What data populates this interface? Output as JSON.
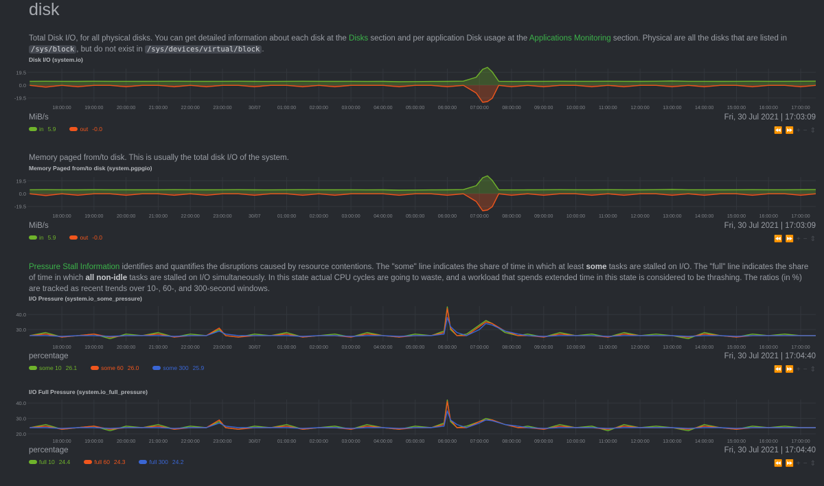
{
  "page_title": "disk",
  "colors": {
    "green": "#6fb32b",
    "orange": "#f0561d",
    "blue": "#3a66d4",
    "link": "#3cb34a",
    "grid": "#33373d",
    "axis_text": "#808489"
  },
  "sections": {
    "disk_io": {
      "text_1": "Total Disk I/O, for all physical disks. You can get detailed information about each disk at the ",
      "link_disks": "Disks",
      "text_2": " section and per application Disk usage at the ",
      "link_apps": "Applications Monitoring",
      "text_3": " section. Physical are all the disks that are listed in ",
      "code_1": "/sys/block",
      "text_4": ", but do not exist in ",
      "code_2": "/sys/devices/virtual/block",
      "text_5": "."
    },
    "pgpgio": {
      "text": "Memory paged from/to disk. This is usually the total disk I/O of the system."
    },
    "psi": {
      "link": "Pressure Stall Information",
      "text_1": " identifies and quantifies the disruptions caused by resource contentions. The \"some\" line indicates the share of time in which at least ",
      "bold_1": "some",
      "text_2": " tasks are stalled on I/O. The \"full\" line indicates the share of time in which ",
      "bold_2": "all non-idle",
      "text_3": " tasks are stalled on I/O simultaneously. In this state actual CPU cycles are going to waste, and a workload that spends extended time in this state is considered to be thrashing. The ratios (in %) are tracked as recent trends over 10-, 60-, and 300-second windows."
    }
  },
  "toolbar": {
    "pan_left": "⏪",
    "pan_right": "⏩",
    "zoom_in": "+",
    "zoom_out": "−",
    "resize": "⇕"
  },
  "chart_data": [
    {
      "type": "area",
      "title": "Disk I/O (system.io)",
      "units": "MiB/s",
      "timestamp": "Fri, 30 Jul 2021 | 17:03:09",
      "xlim": [
        -0.07,
        24.47
      ],
      "ylim": [
        -25,
        25
      ],
      "yticks": [
        19.5,
        0.0,
        -19.5
      ],
      "ytick_labels": [
        "19.5",
        "0.0",
        "-19.5"
      ],
      "xticks": [
        "18:00:00",
        "19:00:00",
        "20:00:00",
        "21:00:00",
        "22:00:00",
        "23:00:00",
        "30/07",
        "01:00:00",
        "02:00:00",
        "03:00:00",
        "04:00:00",
        "05:00:00",
        "06:00:00",
        "07:00:00",
        "08:00:00",
        "09:00:00",
        "10:00:00",
        "11:00:00",
        "12:00:00",
        "13:00:00",
        "14:00:00",
        "15:00:00",
        "16:00:00",
        "17:00:00"
      ],
      "x": [
        0,
        0.5,
        1,
        1.5,
        2,
        2.5,
        3,
        3.5,
        4,
        4.5,
        5,
        5.5,
        6,
        6.5,
        7,
        7.5,
        8,
        8.5,
        9,
        9.5,
        10,
        10.5,
        11,
        11.5,
        12,
        12.5,
        13,
        13.5,
        13.9,
        14.1,
        14.25,
        14.4,
        14.6,
        15,
        15.5,
        16,
        16.5,
        17,
        17.5,
        18,
        18.5,
        19,
        19.5,
        20,
        20.5,
        21,
        21.5,
        22,
        22.5,
        23,
        23.5,
        24,
        24.47
      ],
      "series": [
        {
          "name": "in",
          "color": "#6fb32b",
          "legend_value": "5.9",
          "values": [
            5.8,
            5.9,
            5.8,
            5.7,
            5.9,
            5.8,
            5.8,
            5.7,
            5.8,
            5.9,
            5.8,
            5.7,
            5.8,
            5.9,
            5.7,
            5.6,
            5.8,
            5.9,
            5.8,
            5.7,
            5.8,
            5.6,
            5.7,
            5.2,
            5.4,
            5.6,
            5.7,
            6,
            12,
            24,
            27,
            20,
            5.8,
            5.6,
            5.7,
            5.8,
            5.9,
            5.8,
            5.8,
            5.9,
            5.8,
            5.7,
            5.9,
            6.3,
            5.8,
            5.8,
            5.7,
            5.8,
            5.9,
            5.8,
            5.8,
            5.9,
            6.0
          ]
        },
        {
          "name": "out",
          "color": "#f0561d",
          "legend_value": "-0.0",
          "values": [
            -0.3,
            -3,
            -0.3,
            -2.5,
            -0.3,
            -0.3,
            -2.5,
            -0.3,
            -0.3,
            -2.5,
            -0.3,
            -2.5,
            -0.3,
            -0.3,
            -2.5,
            -0.3,
            -0.3,
            -2.5,
            -0.3,
            -2.5,
            -0.3,
            -0.3,
            -0.3,
            -2.5,
            -0.3,
            -0.3,
            -2.5,
            -0.3,
            -12,
            -26,
            -25,
            -20,
            -0.3,
            -2.5,
            -0.3,
            -2.5,
            -0.3,
            -0.3,
            -2.5,
            -0.3,
            -2.5,
            -0.3,
            -0.3,
            -2.5,
            -0.3,
            -2.5,
            -0.3,
            -0.3,
            -2.5,
            -0.3,
            -0.3,
            -2.5,
            -0.3
          ]
        }
      ]
    },
    {
      "type": "area",
      "title": "Memory Paged from/to disk (system.pgpgio)",
      "units": "MiB/s",
      "timestamp": "Fri, 30 Jul 2021 | 17:03:09",
      "xlim": [
        -0.07,
        24.47
      ],
      "ylim": [
        -25,
        25
      ],
      "yticks": [
        19.5,
        0.0,
        -19.5
      ],
      "ytick_labels": [
        "19.5",
        "0.0",
        "-19.5"
      ],
      "xticks": [
        "18:00:00",
        "19:00:00",
        "20:00:00",
        "21:00:00",
        "22:00:00",
        "23:00:00",
        "30/07",
        "01:00:00",
        "02:00:00",
        "03:00:00",
        "04:00:00",
        "05:00:00",
        "06:00:00",
        "07:00:00",
        "08:00:00",
        "09:00:00",
        "10:00:00",
        "11:00:00",
        "12:00:00",
        "13:00:00",
        "14:00:00",
        "15:00:00",
        "16:00:00",
        "17:00:00"
      ],
      "x": [
        0,
        0.5,
        1,
        1.5,
        2,
        2.5,
        3,
        3.5,
        4,
        4.5,
        5,
        5.5,
        6,
        6.5,
        7,
        7.5,
        8,
        8.5,
        9,
        9.5,
        10,
        10.5,
        11,
        11.5,
        12,
        12.5,
        13,
        13.5,
        13.9,
        14.1,
        14.25,
        14.4,
        14.6,
        15,
        15.5,
        16,
        16.5,
        17,
        17.5,
        18,
        18.5,
        19,
        19.5,
        20,
        20.5,
        21,
        21.5,
        22,
        22.5,
        23,
        23.5,
        24,
        24.47
      ],
      "series": [
        {
          "name": "in",
          "color": "#6fb32b",
          "legend_value": "5.9",
          "values": [
            5.8,
            5.9,
            5.8,
            5.7,
            5.9,
            5.8,
            5.8,
            5.7,
            5.8,
            5.9,
            5.8,
            5.7,
            5.8,
            5.9,
            5.7,
            5.6,
            5.8,
            5.9,
            5.8,
            5.7,
            5.8,
            5.6,
            5.7,
            5.2,
            5.4,
            5.6,
            5.7,
            6,
            12,
            24,
            27,
            20,
            5.8,
            5.6,
            5.7,
            5.8,
            5.9,
            5.8,
            5.8,
            5.9,
            5.8,
            5.7,
            5.9,
            6.3,
            5.8,
            5.8,
            5.7,
            5.8,
            5.9,
            5.8,
            5.8,
            5.9,
            6.0
          ]
        },
        {
          "name": "out",
          "color": "#f0561d",
          "legend_value": "-0.0",
          "values": [
            -0.3,
            -3,
            -0.3,
            -2.5,
            -0.3,
            -0.3,
            -2.5,
            -0.3,
            -0.3,
            -2.5,
            -0.3,
            -2.5,
            -0.3,
            -0.3,
            -2.5,
            -0.3,
            -0.3,
            -2.5,
            -0.3,
            -2.5,
            -0.3,
            -0.3,
            -0.3,
            -2.5,
            -0.3,
            -0.3,
            -2.5,
            -0.3,
            -12,
            -26,
            -25,
            -20,
            -0.3,
            -2.5,
            -0.3,
            -2.5,
            -0.3,
            -0.3,
            -2.5,
            -0.3,
            -2.5,
            -0.3,
            -0.3,
            -2.5,
            -0.3,
            -2.5,
            -0.3,
            -0.3,
            -2.5,
            -0.3,
            -0.3,
            -2.5,
            -0.3
          ]
        }
      ]
    },
    {
      "type": "line",
      "title": "I/O Pressure (system.io_some_pressure)",
      "units": "percentage",
      "timestamp": "Fri, 30 Jul 2021 | 17:04:40",
      "xlim": [
        -0.07,
        24.47
      ],
      "ylim": [
        22.3,
        45.5
      ],
      "yticks": [
        40,
        30
      ],
      "ytick_labels": [
        "40.0",
        "30.0"
      ],
      "xticks": [
        "18:00:00",
        "19:00:00",
        "20:00:00",
        "21:00:00",
        "22:00:00",
        "23:00:00",
        "30/07",
        "01:00:00",
        "02:00:00",
        "03:00:00",
        "04:00:00",
        "05:00:00",
        "06:00:00",
        "07:00:00",
        "08:00:00",
        "09:00:00",
        "10:00:00",
        "11:00:00",
        "12:00:00",
        "13:00:00",
        "14:00:00",
        "15:00:00",
        "16:00:00",
        "17:00:00"
      ],
      "x": [
        0,
        0.5,
        1,
        1.5,
        2,
        2.5,
        3,
        3.5,
        4,
        4.5,
        5,
        5.5,
        5.9,
        6.1,
        6.5,
        7,
        7.5,
        8,
        8.5,
        9,
        9.5,
        10,
        10.5,
        11,
        11.5,
        12,
        12.5,
        12.9,
        13.0,
        13.1,
        13.3,
        13.6,
        14.0,
        14.2,
        14.4,
        14.8,
        15.2,
        15.5,
        16,
        16.5,
        17,
        17.5,
        18,
        18.5,
        19,
        19.5,
        20,
        20.5,
        21,
        21.5,
        22,
        22.5,
        23,
        23.5,
        24,
        24.47
      ],
      "series": [
        {
          "name": "some 10",
          "color": "#6fb32b",
          "legend_value": "26.1",
          "values": [
            26,
            28,
            25,
            26,
            27,
            24,
            27,
            26,
            28,
            25,
            27,
            26,
            30,
            26,
            25,
            27,
            26,
            28,
            25,
            26,
            27,
            25,
            28,
            26,
            25,
            27,
            26,
            29,
            45,
            30,
            26,
            27,
            33,
            36,
            34,
            28,
            26,
            27,
            25,
            28,
            26,
            27,
            25,
            28,
            26,
            27,
            26,
            24,
            28,
            26,
            25,
            27,
            26,
            27,
            26,
            26
          ]
        },
        {
          "name": "some 60",
          "color": "#f0561d",
          "legend_value": "26.0",
          "values": [
            26,
            27,
            25,
            26,
            27,
            25,
            26,
            26,
            27,
            25,
            26,
            26,
            31,
            26,
            25,
            26,
            26,
            27,
            25,
            26,
            26,
            25,
            27,
            26,
            25,
            26,
            26,
            28,
            44,
            31,
            26,
            26,
            32,
            35,
            34,
            29,
            26,
            26,
            25,
            27,
            26,
            26,
            25,
            27,
            26,
            26,
            26,
            25,
            27,
            26,
            25,
            26,
            26,
            26,
            26,
            26
          ]
        },
        {
          "name": "some 300",
          "color": "#3a66d4",
          "legend_value": "25.9",
          "values": [
            26,
            26,
            25.5,
            26,
            26,
            25.5,
            26,
            26,
            26,
            25.5,
            26,
            26,
            29,
            27,
            26,
            26,
            26,
            26,
            25.5,
            26,
            26,
            25.5,
            26,
            26,
            25.5,
            26,
            26,
            27,
            38,
            32,
            28,
            26,
            30,
            34,
            33,
            29,
            27,
            26,
            25.5,
            26,
            26,
            26,
            25.5,
            26,
            26,
            26,
            26,
            25.5,
            26,
            26,
            25.5,
            26,
            26,
            26,
            26,
            26
          ]
        }
      ]
    },
    {
      "type": "line",
      "title": "I/O Full Pressure (system.io_full_pressure)",
      "units": "percentage",
      "timestamp": "Fri, 30 Jul 2021 | 17:04:40",
      "xlim": [
        -0.07,
        24.47
      ],
      "ylim": [
        19.1,
        42.3
      ],
      "yticks": [
        40,
        30,
        20
      ],
      "ytick_labels": [
        "40.0",
        "30.0",
        "20.0"
      ],
      "xticks": [
        "18:00:00",
        "19:00:00",
        "20:00:00",
        "21:00:00",
        "22:00:00",
        "23:00:00",
        "30/07",
        "01:00:00",
        "02:00:00",
        "03:00:00",
        "04:00:00",
        "05:00:00",
        "06:00:00",
        "07:00:00",
        "08:00:00",
        "09:00:00",
        "10:00:00",
        "11:00:00",
        "12:00:00",
        "13:00:00",
        "14:00:00",
        "15:00:00",
        "16:00:00",
        "17:00:00"
      ],
      "x": [
        0,
        0.5,
        1,
        1.5,
        2,
        2.5,
        3,
        3.5,
        4,
        4.5,
        5,
        5.5,
        5.9,
        6.1,
        6.5,
        7,
        7.5,
        8,
        8.5,
        9,
        9.5,
        10,
        10.5,
        11,
        11.5,
        12,
        12.5,
        12.9,
        13.0,
        13.1,
        13.3,
        13.6,
        14.0,
        14.2,
        14.4,
        14.8,
        15.2,
        15.5,
        16,
        16.5,
        17,
        17.5,
        18,
        18.5,
        19,
        19.5,
        20,
        20.5,
        21,
        21.5,
        22,
        22.5,
        23,
        23.5,
        24,
        24.47
      ],
      "series": [
        {
          "name": "full 10",
          "color": "#6fb32b",
          "legend_value": "24.4",
          "values": [
            24,
            26,
            23,
            24,
            25,
            22,
            25,
            24,
            26,
            23,
            25,
            24,
            28,
            24,
            23,
            25,
            24,
            26,
            23,
            24,
            25,
            23,
            26,
            24,
            23,
            25,
            24,
            27,
            42,
            28,
            24,
            25,
            28,
            30,
            29,
            26,
            24,
            25,
            23,
            26,
            24,
            25,
            22,
            26,
            24,
            25,
            24,
            22,
            26,
            24,
            23,
            25,
            24,
            25,
            24,
            24
          ]
        },
        {
          "name": "full 60",
          "color": "#f0561d",
          "legend_value": "24.3",
          "values": [
            24,
            25,
            23,
            24,
            25,
            23,
            24,
            24,
            25,
            23,
            24,
            24,
            29,
            24,
            23,
            24,
            24,
            25,
            23,
            24,
            24,
            23,
            25,
            24,
            23,
            24,
            24,
            26,
            41,
            29,
            24,
            24,
            28,
            29,
            29,
            26,
            24,
            24,
            23,
            25,
            24,
            24,
            23,
            25,
            24,
            24,
            24,
            23,
            25,
            24,
            23,
            24,
            24,
            24,
            24,
            24
          ]
        },
        {
          "name": "full 300",
          "color": "#3a66d4",
          "legend_value": "24.2",
          "values": [
            24,
            24,
            23.5,
            24,
            24,
            23.5,
            24,
            24,
            24,
            23.5,
            24,
            24,
            27,
            25,
            24,
            24,
            24,
            24,
            23.5,
            24,
            24,
            23.5,
            24,
            24,
            23.5,
            24,
            24,
            25,
            35,
            29,
            26,
            24,
            27,
            29,
            28.5,
            26,
            25,
            24,
            23.5,
            24,
            24,
            24,
            23.5,
            24,
            24,
            24,
            24,
            23.5,
            24,
            24,
            23.5,
            24,
            24,
            24,
            24,
            24
          ]
        }
      ]
    }
  ]
}
